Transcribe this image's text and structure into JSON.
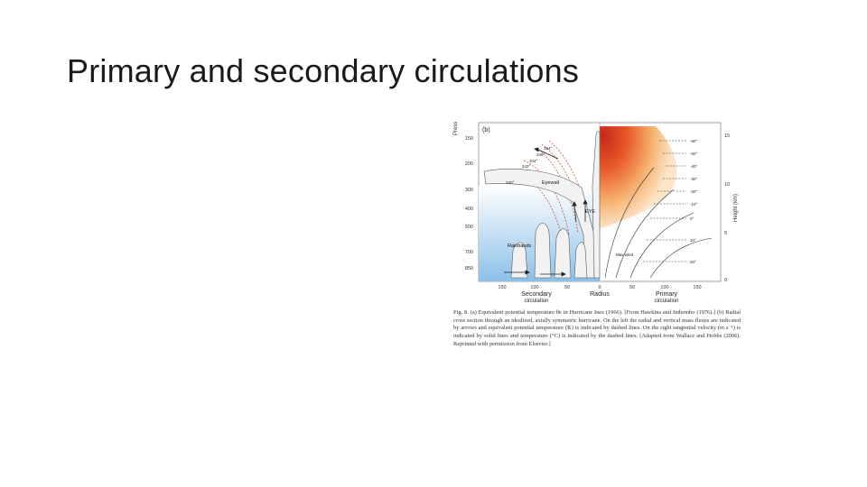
{
  "slide": {
    "title": "Primary and secondary circulations"
  },
  "figure": {
    "panel_label": "(b)",
    "left_axis_label": "Press",
    "right_axis_label": "Height (km)",
    "x_axis_label": "Radius",
    "left_bottom_label": [
      "Secondary",
      "circulation"
    ],
    "right_bottom_label": [
      "Primary",
      "circulation"
    ],
    "pressure_ticks": [
      "150",
      "200",
      "300",
      "400",
      "500",
      "700",
      "850"
    ],
    "height_ticks": [
      "15",
      "10",
      "5",
      "0"
    ],
    "radius_ticks": [
      "150",
      "100",
      "50",
      "0",
      "50",
      "100",
      "150"
    ],
    "annotations": {
      "eyewall": "Eyewall",
      "eye": "EYE",
      "rainbands": "Rainbands",
      "max_wind": "Max wind"
    },
    "theta_labels": [
      "354°",
      "349°",
      "344°",
      "342°",
      "340°"
    ],
    "temp_labels": [
      "-60°",
      "-50°",
      "-40°",
      "-30°",
      "-20°",
      "-10°",
      "0°",
      "10°",
      "20°"
    ],
    "colors": {
      "warm_core": "#e0401c",
      "warm_outer": "#f6b06e",
      "cool_inflow": "#9cc8ea",
      "dashed_theta": "#c43a2a"
    }
  },
  "caption": {
    "text": "Fig. 8. (a) Equivalent potential temperature θe in Hurricane Inez (1966). [From Hawkins and Imbembo (1976).] (b) Radial cross section through an idealized, axially symmetric hurricane. On the left the radial and vertical mass fluxes are indicated by arrows and equivalent potential temperature (K) is indicated by dashed lines. On the right tangential velocity (m s⁻¹) is indicated by solid lines and temperature (°C) is indicated by the dashed lines. [Adapted from Wallace and Hobbs (2006). Reprinted with permission from Elsevier.]"
  }
}
